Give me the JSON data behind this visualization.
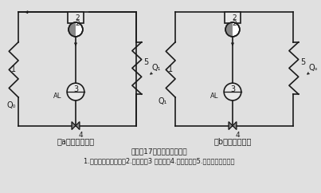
{
  "title_line1": "图２－17　热泵工作原理图",
  "title_line2": "1.蒸发器（冷凝器）　2.换向阀　3 压缩机　4.节流装置　5.冷凝器（蒸发器）",
  "label_a": "（a）　制冷工况",
  "label_b": "（b）　热泵工况",
  "bg_color": "#e0e0e0",
  "line_color": "#1a1a1a",
  "lw": 1.2
}
